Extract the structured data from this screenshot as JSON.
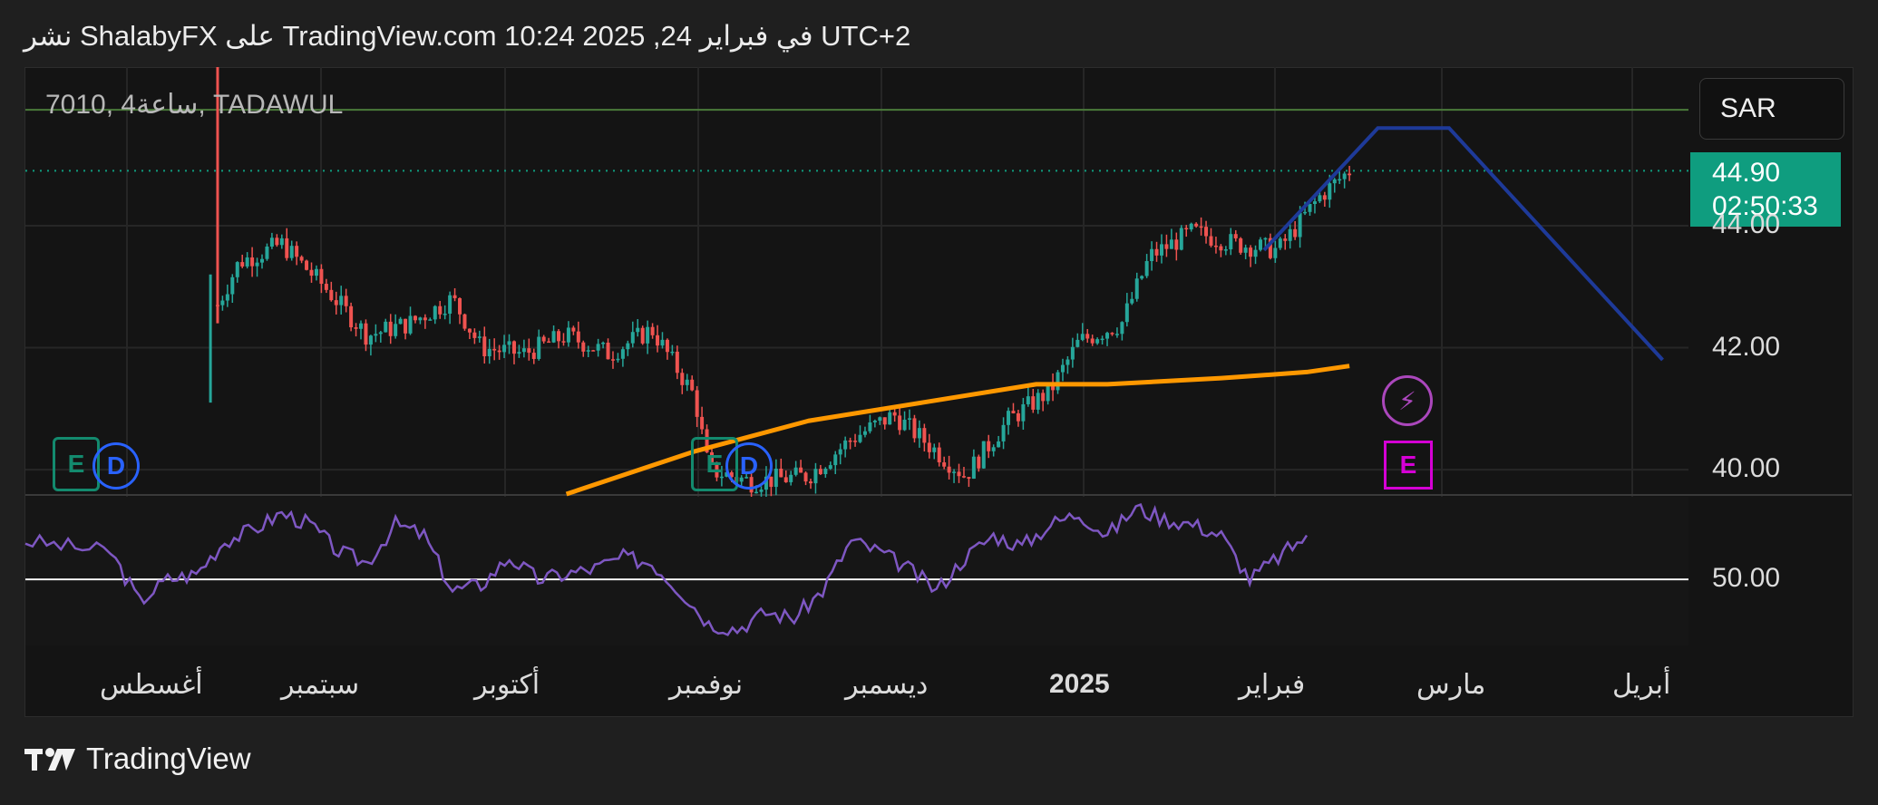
{
  "header": {
    "text": "نشر ShalabyFX على TradingView.com 10:24 2025 ,24 في فبراير UTC+2"
  },
  "symbol": {
    "text": "7010, 4ساعة, TADAWUL"
  },
  "currency": {
    "label": "SAR"
  },
  "price_tag": {
    "price": "44.90",
    "countdown": "02:50:33"
  },
  "footer": {
    "brand": "TradingView"
  },
  "colors": {
    "up": "#26a69a",
    "down": "#ef5350",
    "ma": "#ff9800",
    "rsi": "#7e57c2",
    "trendline": "#1e3a99",
    "price_tag": "#0f9d7f"
  },
  "chart_data": [
    {
      "type": "candlestick",
      "ylim": [
        39.6,
        46.6
      ],
      "y_ticks": [
        "44.00",
        "42.00",
        "40.00"
      ],
      "x_tick_labels": [
        "أغسطس",
        "سبتمبر",
        "أكتوبر",
        "نوفمبر",
        "ديسمبر",
        "2025",
        "فبراير",
        "مارس",
        "أبريل"
      ],
      "grid": true,
      "last_price": 44.9,
      "reference_level": 45.9,
      "close_path": [
        {
          "x": 0.0,
          "y": 42.9
        },
        {
          "x": 0.01,
          "y": 44.1
        },
        {
          "x": 0.03,
          "y": 42.8
        },
        {
          "x": 0.06,
          "y": 42.3
        },
        {
          "x": 0.09,
          "y": 42.0
        },
        {
          "x": 0.12,
          "y": 42.0
        },
        {
          "x": 0.15,
          "y": 43.4
        },
        {
          "x": 0.18,
          "y": 43.7
        },
        {
          "x": 0.21,
          "y": 43.0
        },
        {
          "x": 0.24,
          "y": 42.2
        },
        {
          "x": 0.27,
          "y": 42.4
        },
        {
          "x": 0.3,
          "y": 42.8
        },
        {
          "x": 0.32,
          "y": 42.0
        },
        {
          "x": 0.35,
          "y": 41.9
        },
        {
          "x": 0.38,
          "y": 42.2
        },
        {
          "x": 0.41,
          "y": 41.9
        },
        {
          "x": 0.44,
          "y": 42.3
        },
        {
          "x": 0.47,
          "y": 41.2
        },
        {
          "x": 0.48,
          "y": 40.0
        },
        {
          "x": 0.51,
          "y": 39.8
        },
        {
          "x": 0.55,
          "y": 39.9
        },
        {
          "x": 0.58,
          "y": 40.5
        },
        {
          "x": 0.61,
          "y": 40.9
        },
        {
          "x": 0.64,
          "y": 40.3
        },
        {
          "x": 0.66,
          "y": 39.9
        },
        {
          "x": 0.69,
          "y": 40.8
        },
        {
          "x": 0.72,
          "y": 41.3
        },
        {
          "x": 0.74,
          "y": 42.1
        },
        {
          "x": 0.77,
          "y": 42.4
        },
        {
          "x": 0.79,
          "y": 43.5
        },
        {
          "x": 0.82,
          "y": 43.9
        },
        {
          "x": 0.85,
          "y": 43.7
        },
        {
          "x": 0.88,
          "y": 43.6
        },
        {
          "x": 0.91,
          "y": 44.5
        },
        {
          "x": 0.93,
          "y": 44.9
        }
      ],
      "series": [
        {
          "type": "line",
          "role": "moving-average",
          "points": [
            {
              "x": 0.38,
              "y": 39.6
            },
            {
              "x": 0.47,
              "y": 40.3
            },
            {
              "x": 0.55,
              "y": 40.8
            },
            {
              "x": 0.63,
              "y": 41.1
            },
            {
              "x": 0.71,
              "y": 41.4
            },
            {
              "x": 0.76,
              "y": 41.4
            },
            {
              "x": 0.84,
              "y": 41.5
            },
            {
              "x": 0.9,
              "y": 41.6
            },
            {
              "x": 0.93,
              "y": 41.7
            }
          ]
        },
        {
          "type": "line",
          "role": "trendline",
          "points": [
            {
              "x": 0.87,
              "y": 43.6
            },
            {
              "x": 0.95,
              "y": 45.6
            },
            {
              "x": 1.0,
              "y": 45.6
            },
            {
              "x": 1.15,
              "y": 41.8
            }
          ]
        }
      ]
    },
    {
      "type": "line",
      "role": "rsi",
      "ylim": [
        38,
        65
      ],
      "y_ticks": [
        "50.00"
      ],
      "reference_line": 50,
      "points": [
        {
          "x": 0.0,
          "y": 57
        },
        {
          "x": 0.03,
          "y": 56
        },
        {
          "x": 0.06,
          "y": 55
        },
        {
          "x": 0.08,
          "y": 46
        },
        {
          "x": 0.1,
          "y": 50
        },
        {
          "x": 0.12,
          "y": 51
        },
        {
          "x": 0.14,
          "y": 57
        },
        {
          "x": 0.16,
          "y": 59
        },
        {
          "x": 0.18,
          "y": 62
        },
        {
          "x": 0.2,
          "y": 60
        },
        {
          "x": 0.22,
          "y": 55
        },
        {
          "x": 0.24,
          "y": 53
        },
        {
          "x": 0.26,
          "y": 60
        },
        {
          "x": 0.28,
          "y": 58
        },
        {
          "x": 0.3,
          "y": 48
        },
        {
          "x": 0.32,
          "y": 49
        },
        {
          "x": 0.34,
          "y": 54
        },
        {
          "x": 0.36,
          "y": 50
        },
        {
          "x": 0.38,
          "y": 51
        },
        {
          "x": 0.4,
          "y": 52
        },
        {
          "x": 0.42,
          "y": 54
        },
        {
          "x": 0.44,
          "y": 53
        },
        {
          "x": 0.46,
          "y": 48
        },
        {
          "x": 0.48,
          "y": 42
        },
        {
          "x": 0.5,
          "y": 41
        },
        {
          "x": 0.52,
          "y": 44
        },
        {
          "x": 0.54,
          "y": 43
        },
        {
          "x": 0.56,
          "y": 48
        },
        {
          "x": 0.58,
          "y": 57
        },
        {
          "x": 0.6,
          "y": 55
        },
        {
          "x": 0.62,
          "y": 52
        },
        {
          "x": 0.64,
          "y": 48
        },
        {
          "x": 0.66,
          "y": 54
        },
        {
          "x": 0.68,
          "y": 58
        },
        {
          "x": 0.7,
          "y": 56
        },
        {
          "x": 0.72,
          "y": 60
        },
        {
          "x": 0.74,
          "y": 62
        },
        {
          "x": 0.76,
          "y": 58
        },
        {
          "x": 0.78,
          "y": 63
        },
        {
          "x": 0.8,
          "y": 61
        },
        {
          "x": 0.82,
          "y": 60
        },
        {
          "x": 0.84,
          "y": 58
        },
        {
          "x": 0.86,
          "y": 50
        },
        {
          "x": 0.88,
          "y": 54
        },
        {
          "x": 0.9,
          "y": 58
        }
      ]
    }
  ]
}
